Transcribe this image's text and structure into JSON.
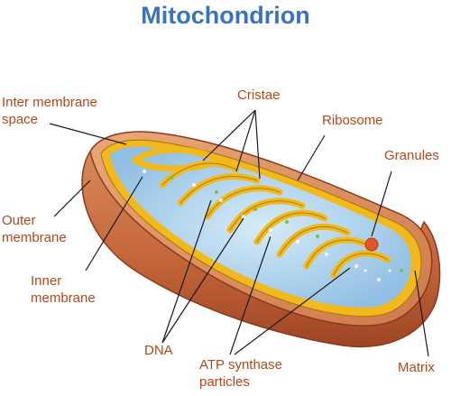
{
  "title": "Mitochondrion",
  "colors": {
    "title": "#3a73b8",
    "label": "#b5471a",
    "leader": "#1a1a1a",
    "outer_membrane": "#c86b3c",
    "inner_membrane": "#f2b91c",
    "matrix": "#a9cde9"
  },
  "labels": {
    "inter_membrane_space_1": "Inter membrane",
    "inter_membrane_space_2": "space",
    "cristae": "Cristae",
    "ribosome": "Ribosome",
    "granules": "Granules",
    "outer_membrane_1": "Outer",
    "outer_membrane_2": "membrane",
    "inner_membrane_1": "Inner",
    "inner_membrane_2": "membrane",
    "dna": "DNA",
    "atp_synthase_1": "ATP synthase",
    "atp_synthase_2": "particles",
    "matrix": "Matrix"
  }
}
